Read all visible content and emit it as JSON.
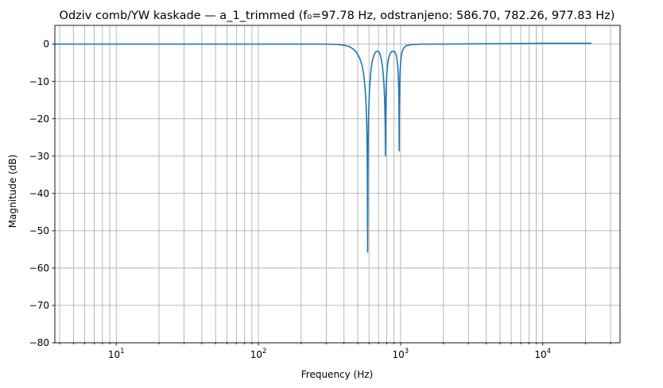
{
  "chart_data": {
    "type": "line",
    "title": "Odziv comb/YW kaskade — a_1_trimmed (f₀=97.78 Hz, odstranjeno: 586.70, 782.26, 977.83 Hz)",
    "xlabel": "Frequency (Hz)",
    "ylabel": "Magnitude (dB)",
    "x_scale": "log",
    "xlim": [
      3.7,
      35000
    ],
    "ylim": [
      -80,
      5
    ],
    "grid": true,
    "x_ticks": [
      {
        "value": 10,
        "base": "10",
        "exp": "1"
      },
      {
        "value": 100,
        "base": "10",
        "exp": "2"
      },
      {
        "value": 1000,
        "base": "10",
        "exp": "3"
      },
      {
        "value": 10000,
        "base": "10",
        "exp": "4"
      }
    ],
    "y_ticks": [
      {
        "value": 0,
        "label": "0"
      },
      {
        "value": -10,
        "label": "−10"
      },
      {
        "value": -20,
        "label": "−20"
      },
      {
        "value": -30,
        "label": "−30"
      },
      {
        "value": -40,
        "label": "−40"
      },
      {
        "value": -50,
        "label": "−50"
      },
      {
        "value": -60,
        "label": "−60"
      },
      {
        "value": -70,
        "label": "−70"
      },
      {
        "value": -80,
        "label": "−80"
      }
    ],
    "line_color": "#1f77b4",
    "grid_color": "#b0b0b0",
    "series": [
      {
        "x": [
          3.7,
          10,
          50,
          100,
          200,
          300,
          350,
          400,
          430,
          460,
          490,
          515,
          535,
          550,
          562,
          572,
          578,
          582,
          584,
          586.7,
          589,
          592,
          597,
          605,
          617,
          632,
          650,
          668,
          690,
          705,
          715,
          728,
          742,
          755,
          765,
          772,
          777,
          780,
          782.26,
          784,
          787,
          792,
          800,
          812,
          826,
          845,
          868,
          890,
          910,
          928,
          942,
          954,
          963,
          969,
          973,
          976,
          977.83,
          980,
          984,
          990,
          1000,
          1015,
          1035,
          1060,
          1100,
          1200,
          1400,
          2000,
          5000,
          10000,
          22000
        ],
        "y": [
          0,
          0,
          0,
          0,
          0,
          0,
          -0.1,
          -0.3,
          -0.6,
          -1.2,
          -2.2,
          -3.7,
          -5.6,
          -8,
          -11.5,
          -16,
          -21,
          -28,
          -35,
          -55.7,
          -35,
          -25,
          -18,
          -12,
          -7.5,
          -4.6,
          -2.9,
          -2.1,
          -1.9,
          -2.1,
          -2.6,
          -3.6,
          -5.4,
          -8,
          -11,
          -14.5,
          -18.5,
          -23,
          -29.9,
          -23,
          -17,
          -12,
          -8,
          -5.3,
          -3.6,
          -2.5,
          -2,
          -1.9,
          -2.1,
          -2.7,
          -3.8,
          -5.5,
          -8,
          -11,
          -14.5,
          -19,
          -28.6,
          -19,
          -13,
          -8.5,
          -5,
          -2.8,
          -1.6,
          -0.9,
          -0.4,
          -0.15,
          0,
          0,
          0.1,
          0.2,
          0.2
        ]
      }
    ]
  }
}
